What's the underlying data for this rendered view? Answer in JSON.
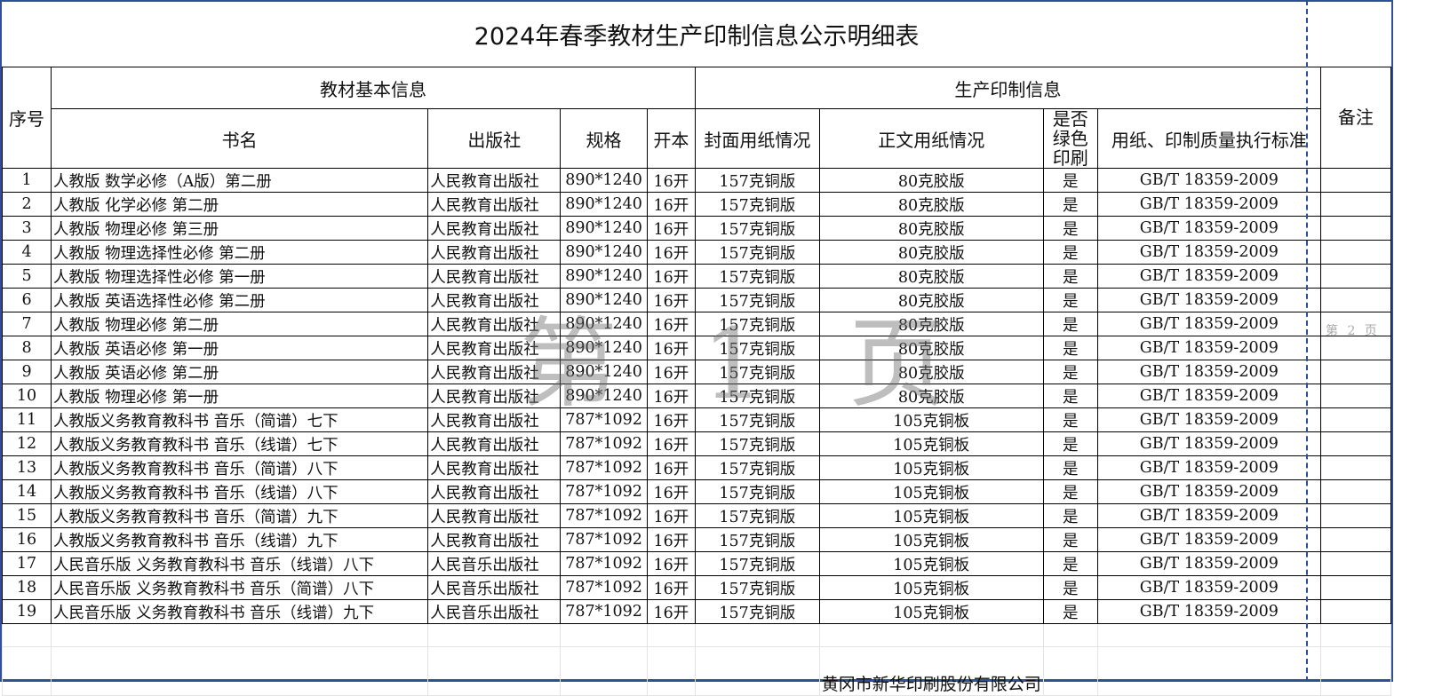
{
  "title": "2024年春季教材生产印制信息公示明细表",
  "headers": {
    "seq": "序号",
    "basic": "教材基本信息",
    "production": "生产印制信息",
    "remark": "备注",
    "book": "书名",
    "publisher": "出版社",
    "spec": "规格",
    "format": "开本",
    "cover": "封面用纸情况",
    "body": "正文用纸情况",
    "green": "是否绿色印刷",
    "standard": "用纸、印制质量执行标准"
  },
  "rows": [
    [
      "1",
      "人教版 数学必修（A版）第二册",
      "人民教育出版社",
      "890*1240",
      "16开",
      "157克铜版",
      "80克胶版",
      "是",
      "GB/T 18359-2009"
    ],
    [
      "2",
      "人教版 化学必修 第二册",
      "人民教育出版社",
      "890*1240",
      "16开",
      "157克铜版",
      "80克胶版",
      "是",
      "GB/T 18359-2009"
    ],
    [
      "3",
      "人教版 物理必修 第三册",
      "人民教育出版社",
      "890*1240",
      "16开",
      "157克铜版",
      "80克胶版",
      "是",
      "GB/T 18359-2009"
    ],
    [
      "4",
      "人教版 物理选择性必修 第二册",
      "人民教育出版社",
      "890*1240",
      "16开",
      "157克铜版",
      "80克胶版",
      "是",
      "GB/T 18359-2009"
    ],
    [
      "5",
      "人教版 物理选择性必修 第一册",
      "人民教育出版社",
      "890*1240",
      "16开",
      "157克铜版",
      "80克胶版",
      "是",
      "GB/T 18359-2009"
    ],
    [
      "6",
      "人教版 英语选择性必修 第二册",
      "人民教育出版社",
      "890*1240",
      "16开",
      "157克铜版",
      "80克胶版",
      "是",
      "GB/T 18359-2009"
    ],
    [
      "7",
      "人教版 物理必修 第二册",
      "人民教育出版社",
      "890*1240",
      "16开",
      "157克铜版",
      "80克胶版",
      "是",
      "GB/T 18359-2009"
    ],
    [
      "8",
      "人教版 英语必修 第一册",
      "人民教育出版社",
      "890*1240",
      "16开",
      "157克铜版",
      "80克胶版",
      "是",
      "GB/T 18359-2009"
    ],
    [
      "9",
      "人教版 英语必修 第二册",
      "人民教育出版社",
      "890*1240",
      "16开",
      "157克铜版",
      "80克胶版",
      "是",
      "GB/T 18359-2009"
    ],
    [
      "10",
      "人教版 物理必修 第一册",
      "人民教育出版社",
      "890*1240",
      "16开",
      "157克铜版",
      "80克胶版",
      "是",
      "GB/T 18359-2009"
    ],
    [
      "11",
      "人教版义务教育教科书 音乐（简谱）七下",
      "人民教育出版社",
      "787*1092",
      "16开",
      "157克铜版",
      "105克铜板",
      "是",
      "GB/T 18359-2009"
    ],
    [
      "12",
      "人教版义务教育教科书 音乐（线谱）七下",
      "人民教育出版社",
      "787*1092",
      "16开",
      "157克铜版",
      "105克铜板",
      "是",
      "GB/T 18359-2009"
    ],
    [
      "13",
      "人教版义务教育教科书 音乐（简谱）八下",
      "人民教育出版社",
      "787*1092",
      "16开",
      "157克铜版",
      "105克铜板",
      "是",
      "GB/T 18359-2009"
    ],
    [
      "14",
      "人教版义务教育教科书 音乐（线谱）八下",
      "人民教育出版社",
      "787*1092",
      "16开",
      "157克铜版",
      "105克铜板",
      "是",
      "GB/T 18359-2009"
    ],
    [
      "15",
      "人教版义务教育教科书 音乐（简谱）九下",
      "人民教育出版社",
      "787*1092",
      "16开",
      "157克铜版",
      "105克铜板",
      "是",
      "GB/T 18359-2009"
    ],
    [
      "16",
      "人教版义务教育教科书 音乐（线谱）九下",
      "人民教育出版社",
      "787*1092",
      "16开",
      "157克铜版",
      "105克铜板",
      "是",
      "GB/T 18359-2009"
    ],
    [
      "17",
      "人民音乐版 义务教育教科书 音乐（线谱）八下",
      "人民音乐出版社",
      "787*1092",
      "16开",
      "157克铜版",
      "105克铜板",
      "是",
      "GB/T 18359-2009"
    ],
    [
      "18",
      "人民音乐版 义务教育教科书 音乐（简谱）八下",
      "人民音乐出版社",
      "787*1092",
      "16开",
      "157克铜版",
      "105克铜板",
      "是",
      "GB/T 18359-2009"
    ],
    [
      "19",
      "人民音乐版 义务教育教科书 音乐（线谱）九下",
      "人民音乐出版社",
      "787*1092",
      "16开",
      "157克铜版",
      "105克铜板",
      "是",
      "GB/T 18359-2009"
    ]
  ],
  "footer": "黄冈市新华印刷股份有限公司",
  "watermark": "第 1 页",
  "page2_label": "第 2 页",
  "colors": {
    "frame": "#2f4f9a"
  }
}
